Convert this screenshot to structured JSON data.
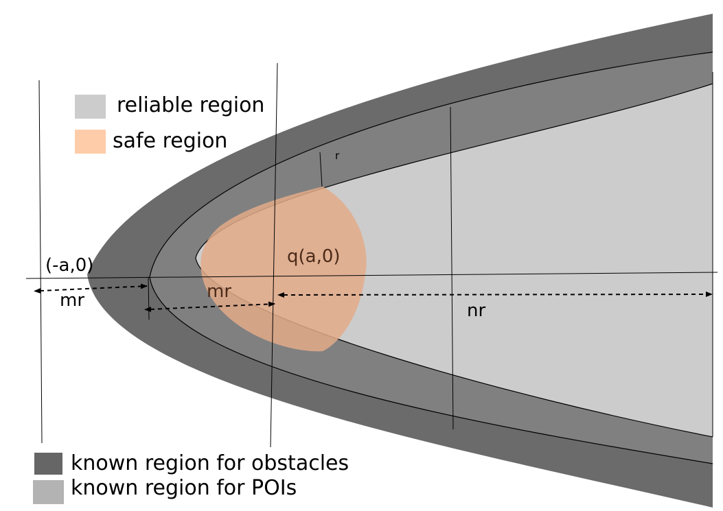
{
  "legend": {
    "reliable": {
      "label": "reliable region",
      "color": "#cccccc"
    },
    "safe": {
      "label": "safe region",
      "color": "#ffccaa"
    },
    "obstacles": {
      "label": "known region for obstacles",
      "color": "#666666"
    },
    "pois": {
      "label": "known region for POIs",
      "color": "#b3b3b3"
    }
  },
  "labels": {
    "point_neg_a": "(-a,0)",
    "point_q": "q(a,0)",
    "mr_left": "mr",
    "mr_middle": "mr",
    "nr": "nr",
    "r": "r"
  },
  "colors": {
    "outer_band": "#6b6b6b",
    "middle_band": "#808080",
    "inner_region": "#cccccc",
    "safe_region": "#e3aa88"
  }
}
